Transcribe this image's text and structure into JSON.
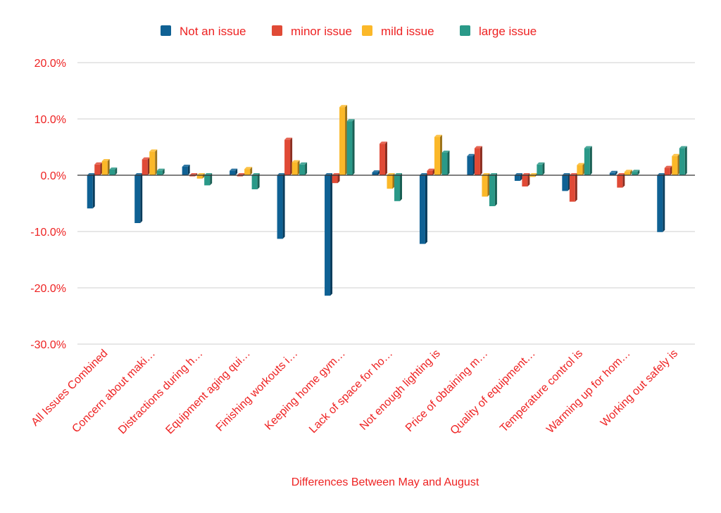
{
  "chart_data": {
    "type": "bar",
    "style": "3d-clustered-column",
    "title": "",
    "xlabel": "Differences Between May and August",
    "ylabel": "",
    "ylim": [
      -30,
      20
    ],
    "yticks": [
      20,
      10,
      0,
      -10,
      -20,
      -30
    ],
    "ytick_labels": [
      "20.0%",
      "10.0%",
      "0.0%",
      "-10.0%",
      "-20.0%",
      "-30.0%"
    ],
    "grid": true,
    "legend_position": "top",
    "categories": [
      "All Issues Combined",
      "Concern about maki…",
      "Distractions during h…",
      "Equipment aging qui…",
      "Finishing workouts i…",
      "Keeping home gym…",
      "Lack of space for ho…",
      "Not enough lighting is",
      "Price of obtaining m…",
      "Quality of equipment…",
      "Temperature control is",
      "Warming up for hom…",
      "Working out safely is"
    ],
    "series": [
      {
        "name": "Not an issue",
        "color": "#0f6194",
        "values": [
          -5.9,
          -8.5,
          1.5,
          0.8,
          -11.3,
          -21.4,
          0.5,
          -12.2,
          3.4,
          -1.0,
          -2.8,
          0.4,
          -10.1
        ]
      },
      {
        "name": "minor issue",
        "color": "#e04a36",
        "values": [
          1.9,
          2.8,
          -0.2,
          -0.2,
          6.3,
          -1.4,
          5.6,
          0.8,
          4.8,
          -2.0,
          -4.7,
          -2.2,
          1.3
        ]
      },
      {
        "name": "mild issue",
        "color": "#fbb829",
        "values": [
          2.5,
          4.2,
          -0.6,
          1.1,
          2.3,
          12.1,
          -2.4,
          6.8,
          -3.8,
          -0.3,
          1.8,
          0.6,
          3.4
        ]
      },
      {
        "name": "large issue",
        "color": "#2a9988",
        "values": [
          1.0,
          0.8,
          -1.8,
          -2.5,
          1.9,
          9.6,
          -4.6,
          4.0,
          -5.5,
          1.9,
          4.8,
          0.6,
          4.8
        ]
      }
    ],
    "text_color": "#ee2222"
  }
}
